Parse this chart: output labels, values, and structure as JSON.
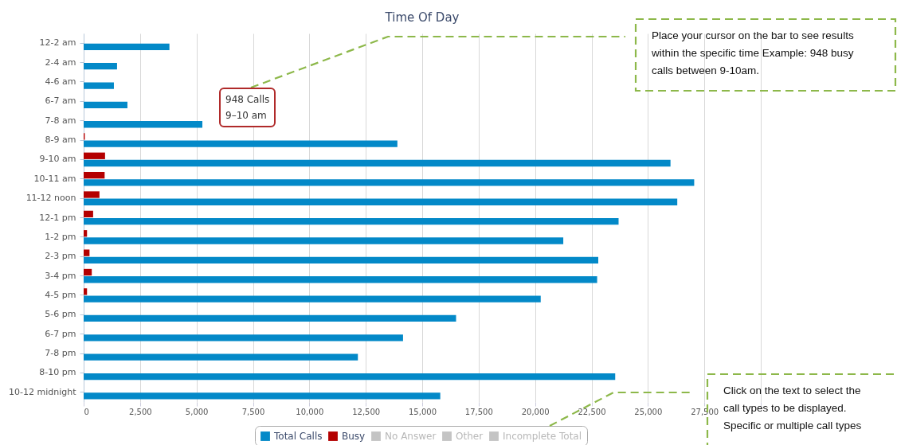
{
  "chart_data": {
    "type": "bar",
    "orientation": "horizontal",
    "title": "Time Of Day",
    "categories": [
      "12-2 am",
      "2-4 am",
      "4-6 am",
      "6-7 am",
      "7-8 am",
      "8-9 am",
      "9-10 am",
      "10-11 am",
      "11-12 noon",
      "12-1 pm",
      "1-2 pm",
      "2-3 pm",
      "3-4 pm",
      "4-5 pm",
      "5-6 pm",
      "6-7 pm",
      "7-8 pm",
      "8-10 pm",
      "10-12 midnight"
    ],
    "series": [
      {
        "name": "Total Calls",
        "color": "#0389c8",
        "values": [
          3800,
          1480,
          1340,
          1940,
          5260,
          13900,
          26000,
          27050,
          26300,
          23700,
          21250,
          22800,
          22750,
          20250,
          16500,
          14150,
          12150,
          23550,
          15800
        ]
      },
      {
        "name": "Busy",
        "color": "#b40000",
        "values": [
          null,
          null,
          null,
          null,
          null,
          50,
          948,
          930,
          700,
          420,
          150,
          260,
          360,
          150,
          null,
          null,
          null,
          null,
          null
        ]
      },
      {
        "name": "No Answer",
        "color": "#c4c4c4",
        "values": [
          null,
          null,
          null,
          null,
          null,
          null,
          null,
          null,
          null,
          null,
          null,
          null,
          null,
          null,
          null,
          null,
          null,
          null,
          null
        ]
      },
      {
        "name": "Other",
        "color": "#c4c4c4",
        "values": [
          null,
          null,
          null,
          null,
          null,
          null,
          null,
          null,
          null,
          null,
          null,
          null,
          null,
          null,
          null,
          null,
          null,
          null,
          null
        ]
      },
      {
        "name": "Incomplete Total",
        "color": "#c4c4c4",
        "values": [
          null,
          null,
          null,
          null,
          null,
          null,
          null,
          null,
          null,
          null,
          null,
          null,
          null,
          null,
          null,
          null,
          null,
          null,
          null
        ]
      }
    ],
    "xlim": [
      0,
      30000
    ],
    "xticks": [
      0,
      {
        "value": 2500,
        "label": "2,500"
      },
      {
        "value": 5000,
        "label": "5,000"
      },
      {
        "value": 7500,
        "label": "7,500"
      },
      {
        "value": 10000,
        "label": "10,000"
      },
      {
        "value": 12500,
        "label": "12,500"
      },
      {
        "value": 15000,
        "label": "15,000"
      },
      {
        "value": 17500,
        "label": "17,500"
      },
      {
        "value": 20000,
        "label": "20,000"
      },
      {
        "value": 22500,
        "label": "22,500"
      },
      {
        "value": 25000,
        "label": "25,000"
      },
      {
        "value": 27500,
        "label": "27,500"
      },
      {
        "value": 30000,
        "label": null
      }
    ],
    "grid": "x",
    "legend": "bottom",
    "annotations": [
      "948 Calls\n9–10 am",
      "Place your cursor on the bar to see results within the specific time Example: 948 busy calls between 9-10am.",
      "Click on the text to select the call types to be displayed. Specific or multiple call types"
    ]
  }
}
